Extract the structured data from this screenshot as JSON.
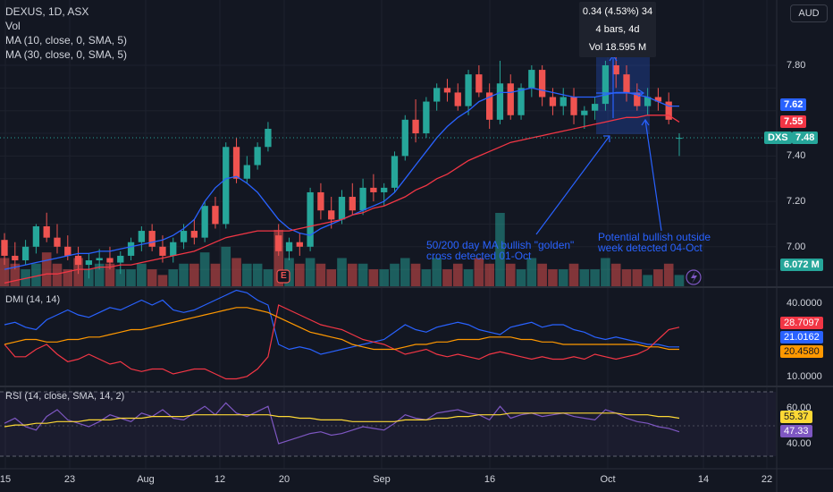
{
  "header": {
    "symbol_line": "DEXUS, 1D, ASX",
    "vol_label": "Vol",
    "ma10_label": "MA (10, close, 0, SMA, 5)",
    "ma30_label": "MA (30, close, 0, SMA, 5)"
  },
  "currency_button": "AUD",
  "tooltip": {
    "line1": "0.34 (4.53%) 34",
    "line2": "4 bars, 4d",
    "line3": "Vol 18.595 M"
  },
  "price_axis": {
    "ticks": [
      "7.80",
      "7.40",
      "7.20",
      "7.00"
    ],
    "ma10_tag": "7.62",
    "ma30_tag": "7.55",
    "symbol_tag": "DXS",
    "last_price_tag": "7.48",
    "volume_tag": "6.072 M"
  },
  "dmi": {
    "title": "DMI (14, 14)",
    "ticks": [
      "40.0000",
      "10.0000"
    ],
    "tag_red": "28.7097",
    "tag_blue": "21.0162",
    "tag_orange": "20.4580"
  },
  "rsi": {
    "title": "RSI (14, close, SMA, 14, 2)",
    "ticks": [
      "60.00",
      "40.00"
    ],
    "tag_ma": "55.37",
    "tag_rsi": "47.33"
  },
  "time_axis": [
    "15",
    "23",
    "Aug",
    "12",
    "20",
    "Sep",
    "16",
    "Oct",
    "14",
    "22"
  ],
  "annotations": {
    "golden_cross_1": "50/200 day MA bullish \"golden\"",
    "golden_cross_2": "cross detected 01-Oct",
    "outside_week_1": "Potential bullish outside",
    "outside_week_2": "week detected 04-Oct"
  },
  "earnings_marker": "E",
  "colors": {
    "background": "#131722",
    "up": "#26a69a",
    "down": "#ef5350",
    "ma10": "#2962ff",
    "ma30": "#f23645",
    "dmi_plus": "#2962ff",
    "dmi_minus": "#f23645",
    "adx": "#ff9800",
    "rsi": "#7e57c2",
    "rsi_ma": "#fdd835",
    "annotation": "#2962ff"
  },
  "chart_data": {
    "type": "candlestick",
    "ylim": [
      6.82,
      7.9
    ],
    "candles": [
      {
        "o": 7.03,
        "h": 7.06,
        "l": 6.92,
        "c": 6.96
      },
      {
        "o": 6.96,
        "h": 7.02,
        "l": 6.9,
        "c": 6.94
      },
      {
        "o": 6.94,
        "h": 7.03,
        "l": 6.92,
        "c": 7.0
      },
      {
        "o": 7.0,
        "h": 7.1,
        "l": 6.97,
        "c": 7.09
      },
      {
        "o": 7.09,
        "h": 7.15,
        "l": 7.02,
        "c": 7.04
      },
      {
        "o": 7.04,
        "h": 7.1,
        "l": 6.97,
        "c": 7.0
      },
      {
        "o": 7.0,
        "h": 7.05,
        "l": 6.94,
        "c": 6.96
      },
      {
        "o": 6.96,
        "h": 7.0,
        "l": 6.88,
        "c": 6.92
      },
      {
        "o": 6.92,
        "h": 6.97,
        "l": 6.86,
        "c": 6.94
      },
      {
        "o": 6.94,
        "h": 6.99,
        "l": 6.9,
        "c": 6.95
      },
      {
        "o": 6.95,
        "h": 7.0,
        "l": 6.9,
        "c": 6.93
      },
      {
        "o": 6.93,
        "h": 6.98,
        "l": 6.88,
        "c": 6.96
      },
      {
        "o": 6.96,
        "h": 7.04,
        "l": 6.94,
        "c": 7.02
      },
      {
        "o": 7.02,
        "h": 7.09,
        "l": 6.98,
        "c": 7.07
      },
      {
        "o": 7.07,
        "h": 7.1,
        "l": 6.98,
        "c": 7.0
      },
      {
        "o": 7.0,
        "h": 7.05,
        "l": 6.93,
        "c": 6.96
      },
      {
        "o": 6.96,
        "h": 7.04,
        "l": 6.93,
        "c": 7.02
      },
      {
        "o": 7.02,
        "h": 7.1,
        "l": 6.99,
        "c": 7.07
      },
      {
        "o": 7.07,
        "h": 7.12,
        "l": 7.01,
        "c": 7.04
      },
      {
        "o": 7.04,
        "h": 7.2,
        "l": 7.02,
        "c": 7.18
      },
      {
        "o": 7.18,
        "h": 7.22,
        "l": 7.08,
        "c": 7.1
      },
      {
        "o": 7.1,
        "h": 7.46,
        "l": 7.08,
        "c": 7.44
      },
      {
        "o": 7.44,
        "h": 7.48,
        "l": 7.28,
        "c": 7.3
      },
      {
        "o": 7.3,
        "h": 7.4,
        "l": 7.28,
        "c": 7.36
      },
      {
        "o": 7.36,
        "h": 7.46,
        "l": 7.34,
        "c": 7.44
      },
      {
        "o": 7.44,
        "h": 7.55,
        "l": 7.42,
        "c": 7.52
      },
      {
        "o": 7.05,
        "h": 7.1,
        "l": 6.96,
        "c": 6.98
      },
      {
        "o": 6.98,
        "h": 7.04,
        "l": 6.94,
        "c": 7.02
      },
      {
        "o": 7.02,
        "h": 7.06,
        "l": 6.96,
        "c": 7.0
      },
      {
        "o": 7.0,
        "h": 7.26,
        "l": 6.98,
        "c": 7.24
      },
      {
        "o": 7.24,
        "h": 7.28,
        "l": 7.12,
        "c": 7.16
      },
      {
        "o": 7.16,
        "h": 7.22,
        "l": 7.08,
        "c": 7.12
      },
      {
        "o": 7.12,
        "h": 7.25,
        "l": 7.1,
        "c": 7.22
      },
      {
        "o": 7.22,
        "h": 7.28,
        "l": 7.14,
        "c": 7.16
      },
      {
        "o": 7.16,
        "h": 7.3,
        "l": 7.14,
        "c": 7.26
      },
      {
        "o": 7.26,
        "h": 7.32,
        "l": 7.2,
        "c": 7.24
      },
      {
        "o": 7.24,
        "h": 7.28,
        "l": 7.18,
        "c": 7.26
      },
      {
        "o": 7.26,
        "h": 7.42,
        "l": 7.24,
        "c": 7.4
      },
      {
        "o": 7.4,
        "h": 7.58,
        "l": 7.38,
        "c": 7.56
      },
      {
        "o": 7.56,
        "h": 7.65,
        "l": 7.46,
        "c": 7.5
      },
      {
        "o": 7.5,
        "h": 7.66,
        "l": 7.48,
        "c": 7.64
      },
      {
        "o": 7.64,
        "h": 7.72,
        "l": 7.6,
        "c": 7.7
      },
      {
        "o": 7.7,
        "h": 7.74,
        "l": 7.64,
        "c": 7.68
      },
      {
        "o": 7.68,
        "h": 7.72,
        "l": 7.6,
        "c": 7.62
      },
      {
        "o": 7.62,
        "h": 7.78,
        "l": 7.58,
        "c": 7.76
      },
      {
        "o": 7.76,
        "h": 7.8,
        "l": 7.66,
        "c": 7.68
      },
      {
        "o": 7.68,
        "h": 7.72,
        "l": 7.52,
        "c": 7.56
      },
      {
        "o": 7.56,
        "h": 7.82,
        "l": 7.54,
        "c": 7.72
      },
      {
        "o": 7.72,
        "h": 7.76,
        "l": 7.56,
        "c": 7.58
      },
      {
        "o": 7.58,
        "h": 7.72,
        "l": 7.56,
        "c": 7.7
      },
      {
        "o": 7.7,
        "h": 7.8,
        "l": 7.66,
        "c": 7.78
      },
      {
        "o": 7.78,
        "h": 7.8,
        "l": 7.62,
        "c": 7.66
      },
      {
        "o": 7.66,
        "h": 7.7,
        "l": 7.58,
        "c": 7.62
      },
      {
        "o": 7.62,
        "h": 7.7,
        "l": 7.58,
        "c": 7.66
      },
      {
        "o": 7.66,
        "h": 7.7,
        "l": 7.54,
        "c": 7.58
      },
      {
        "o": 7.58,
        "h": 7.62,
        "l": 7.52,
        "c": 7.6
      },
      {
        "o": 7.6,
        "h": 7.66,
        "l": 7.56,
        "c": 7.63
      },
      {
        "o": 7.63,
        "h": 7.82,
        "l": 7.6,
        "c": 7.8
      },
      {
        "o": 7.8,
        "h": 7.84,
        "l": 7.7,
        "c": 7.76
      },
      {
        "o": 7.76,
        "h": 7.8,
        "l": 7.64,
        "c": 7.68
      },
      {
        "o": 7.68,
        "h": 7.72,
        "l": 7.6,
        "c": 7.62
      },
      {
        "o": 7.62,
        "h": 7.7,
        "l": 7.58,
        "c": 7.66
      },
      {
        "o": 7.66,
        "h": 7.7,
        "l": 7.6,
        "c": 7.64
      },
      {
        "o": 7.64,
        "h": 7.68,
        "l": 7.54,
        "c": 7.56
      },
      {
        "o": 7.48,
        "h": 7.5,
        "l": 7.4,
        "c": 7.48
      }
    ],
    "volume": [
      0.5,
      0.4,
      0.3,
      0.4,
      0.6,
      0.4,
      0.3,
      0.5,
      0.3,
      0.4,
      0.4,
      0.3,
      0.3,
      0.4,
      0.3,
      0.2,
      0.3,
      0.4,
      0.4,
      0.6,
      0.4,
      0.7,
      0.5,
      0.4,
      0.4,
      0.3,
      1.0,
      0.5,
      0.4,
      0.5,
      0.4,
      0.3,
      0.5,
      0.4,
      0.4,
      0.3,
      0.3,
      0.4,
      0.5,
      0.4,
      0.3,
      0.5,
      0.3,
      0.4,
      0.3,
      0.5,
      0.4,
      1.3,
      0.4,
      0.3,
      0.5,
      0.4,
      0.3,
      0.3,
      0.4,
      0.3,
      0.3,
      0.5,
      0.4,
      0.3,
      0.3,
      0.2,
      0.3,
      0.4,
      0.2
    ],
    "ma10": [
      6.9,
      6.91,
      6.92,
      6.93,
      6.94,
      6.95,
      6.96,
      6.97,
      6.97,
      6.98,
      6.98,
      6.99,
      7.0,
      7.01,
      7.02,
      7.03,
      7.05,
      7.08,
      7.12,
      7.2,
      7.26,
      7.3,
      7.31,
      7.28,
      7.24,
      7.18,
      7.12,
      7.08,
      7.06,
      7.05,
      7.08,
      7.1,
      7.12,
      7.14,
      7.16,
      7.18,
      7.2,
      7.24,
      7.3,
      7.36,
      7.42,
      7.48,
      7.53,
      7.57,
      7.6,
      7.64,
      7.66,
      7.68,
      7.68,
      7.69,
      7.7,
      7.69,
      7.68,
      7.67,
      7.66,
      7.66,
      7.66,
      7.67,
      7.68,
      7.68,
      7.67,
      7.66,
      7.64,
      7.62,
      7.62
    ],
    "ma30": [
      6.84,
      6.85,
      6.86,
      6.87,
      6.88,
      6.88,
      6.89,
      6.9,
      6.9,
      6.91,
      6.91,
      6.92,
      6.92,
      6.93,
      6.94,
      6.95,
      6.96,
      6.97,
      6.98,
      7.0,
      7.02,
      7.04,
      7.05,
      7.06,
      7.07,
      7.07,
      7.07,
      7.07,
      7.08,
      7.09,
      7.1,
      7.11,
      7.12,
      7.14,
      7.15,
      7.17,
      7.18,
      7.2,
      7.22,
      7.25,
      7.27,
      7.3,
      7.32,
      7.35,
      7.38,
      7.4,
      7.42,
      7.44,
      7.46,
      7.47,
      7.48,
      7.49,
      7.5,
      7.51,
      7.52,
      7.53,
      7.54,
      7.55,
      7.56,
      7.57,
      7.57,
      7.58,
      7.58,
      7.58,
      7.55
    ],
    "dmi_plus": [
      30,
      31,
      29,
      28,
      32,
      34,
      36,
      34,
      33,
      35,
      37,
      36,
      38,
      40,
      38,
      40,
      36,
      35,
      36,
      38,
      40,
      42,
      44,
      43,
      40,
      38,
      22,
      20,
      21,
      20,
      18,
      19,
      20,
      21,
      22,
      23,
      24,
      27,
      30,
      28,
      27,
      29,
      30,
      31,
      30,
      28,
      27,
      26,
      29,
      30,
      31,
      29,
      30,
      30,
      28,
      27,
      25,
      24,
      25,
      24,
      23,
      22,
      22,
      21,
      21
    ],
    "dmi_minus": [
      22,
      17,
      17,
      20,
      22,
      18,
      15,
      16,
      18,
      16,
      14,
      15,
      12,
      11,
      12,
      12,
      10,
      11,
      12,
      12,
      10,
      8,
      8,
      9,
      12,
      17,
      38,
      36,
      34,
      32,
      30,
      29,
      28,
      26,
      24,
      23,
      22,
      20,
      18,
      19,
      20,
      18,
      17,
      18,
      17,
      16,
      18,
      19,
      18,
      17,
      16,
      17,
      16,
      16,
      17,
      16,
      18,
      17,
      16,
      17,
      18,
      20,
      24,
      28,
      29
    ],
    "adx": [
      22,
      23,
      24,
      24,
      23,
      23,
      24,
      24,
      25,
      25,
      26,
      27,
      28,
      28,
      29,
      30,
      31,
      32,
      33,
      34,
      35,
      36,
      37,
      37,
      36,
      35,
      33,
      31,
      29,
      27,
      26,
      25,
      24,
      22,
      21,
      20,
      20,
      20,
      21,
      22,
      22,
      23,
      23,
      24,
      24,
      24,
      25,
      25,
      25,
      24,
      24,
      23,
      23,
      22,
      22,
      22,
      22,
      22,
      22,
      22,
      22,
      21,
      21,
      20,
      20
    ],
    "rsi": [
      52,
      55,
      50,
      48,
      56,
      60,
      54,
      52,
      50,
      53,
      57,
      55,
      53,
      58,
      56,
      60,
      55,
      54,
      58,
      62,
      57,
      64,
      58,
      56,
      59,
      62,
      40,
      42,
      44,
      46,
      47,
      45,
      46,
      48,
      50,
      49,
      48,
      52,
      57,
      55,
      54,
      58,
      59,
      60,
      58,
      57,
      54,
      62,
      55,
      57,
      58,
      56,
      57,
      58,
      56,
      55,
      54,
      60,
      58,
      55,
      53,
      52,
      50,
      49,
      47
    ],
    "rsi_ma": [
      50,
      51,
      51,
      52,
      52,
      53,
      53,
      53,
      54,
      54,
      54,
      55,
      55,
      55,
      56,
      56,
      56,
      56,
      57,
      57,
      57,
      57,
      57,
      57,
      57,
      57,
      56,
      56,
      55,
      55,
      54,
      54,
      54,
      53,
      53,
      53,
      53,
      53,
      54,
      54,
      54,
      55,
      55,
      56,
      56,
      57,
      57,
      57,
      58,
      58,
      58,
      58,
      58,
      58,
      58,
      58,
      58,
      58,
      58,
      57,
      57,
      57,
      56,
      56,
      55
    ]
  }
}
